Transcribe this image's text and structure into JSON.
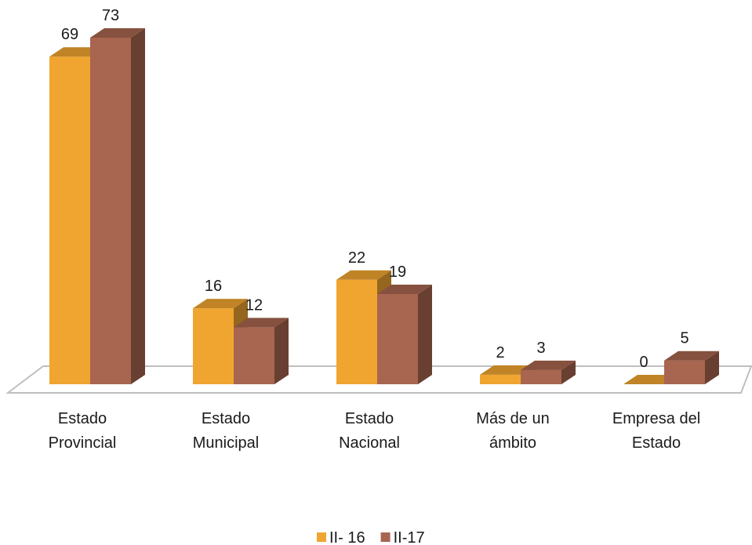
{
  "chart_data": {
    "type": "bar3d",
    "categories": [
      "Estado Provincial",
      "Estado Municipal",
      "Estado Nacional",
      "Más de un ámbito",
      "Empresa del Estado"
    ],
    "series": [
      {
        "name": "II- 16",
        "color": "#f0a530",
        "values": [
          69,
          16,
          22,
          2,
          0
        ]
      },
      {
        "name": "II-17",
        "color": "#a8654f",
        "values": [
          73,
          12,
          19,
          3,
          5
        ]
      }
    ],
    "legend": "bottom"
  }
}
